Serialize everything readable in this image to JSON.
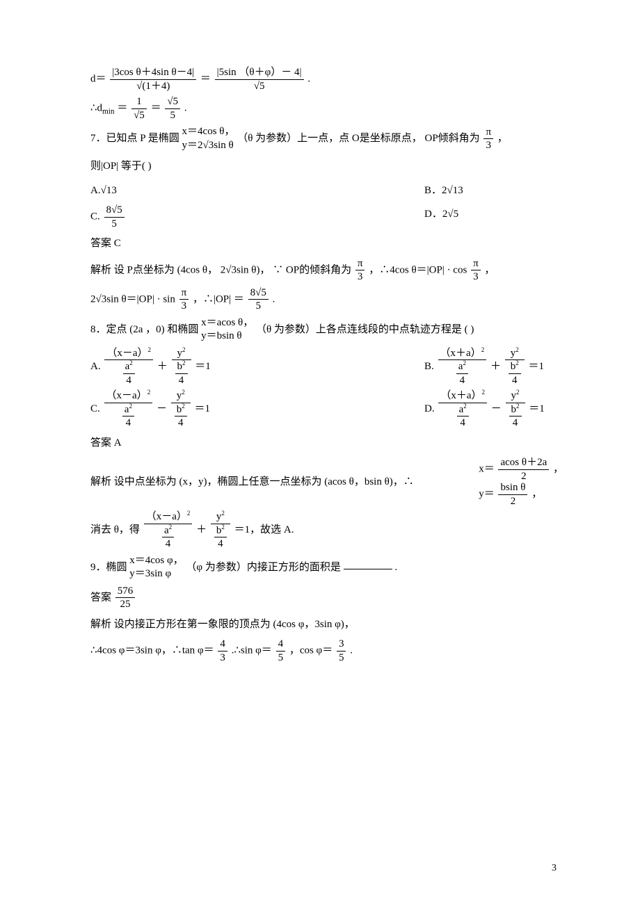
{
  "p1_a": "d＝",
  "p1_num1": "|3cos θ＋4sin θ－4|",
  "p1_den1": "√(1＋4)",
  "p1_eq": "＝",
  "p1_num2": "|5sin （θ＋φ）－ 4|",
  "p1_den2": "√5",
  "p1_end": ".",
  "p2_a": "∴d",
  "p2_sub": "min",
  "p2_eq": "＝",
  "p2_num1": "1",
  "p2_den1": "√5",
  "p2_eq2": "＝",
  "p2_num2": "√5",
  "p2_den2": "5",
  "p2_end": ".",
  "q7_1a": "7．已知点  P 是椭圆 ",
  "q7_br1": "x＝4cos θ，",
  "q7_br2": "y＝2√3sin θ",
  "q7_1b": "（θ 为参数）上一点，点   O是坐标原点，   OP倾斜角为 ",
  "q7_frac_n": "π",
  "q7_frac_d": "3",
  "q7_1c": "，",
  "q7_2": "则|OP| 等于(        )",
  "q7_A": "A.√13",
  "q7_B": "B．2√13",
  "q7_C_pre": "C.",
  "q7_C_num": "8√5",
  "q7_C_den": "5",
  "q7_D": "D．2√5",
  "q7_ans": "答案    C",
  "q7_e1a": "解析    设 P点坐标为 (4cos θ， 2√3sin θ)， ∵ OP的倾斜角为 ",
  "q7_e1_n": "π",
  "q7_e1_d": "3",
  "q7_e1b": "，∴4cos θ＝|OP| · cos",
  "q7_e1_n2": "π",
  "q7_e1_d2": "3",
  "q7_e1c": "，",
  "q7_e2a": "2√3sin θ＝|OP| · sin ",
  "q7_e2_n": "π",
  "q7_e2_d": "3",
  "q7_e2b": "，∴|OP| ＝",
  "q7_e2_n2": "8√5",
  "q7_e2_d2": "5",
  "q7_e2c": ".",
  "q8_1a": "8．定点 (2a ，0) 和椭圆 ",
  "q8_br1": "x＝acos θ，",
  "q8_br2": "y＝bsin θ",
  "q8_1b": " （θ 为参数）上各点连线段的中点轨迹方程是    (        )",
  "q8_A_pre": "A.",
  "q8_A_n1": "（x－a）",
  "q8_A_d1top": "a",
  "q8_A_d1bot": "4",
  "q8_A_plus": "＋",
  "q8_A_n2": "y",
  "q8_A_d2top": "b",
  "q8_A_d2bot": "4",
  "q8_A_eq": "＝1",
  "q8_B_pre": "B.",
  "q8_B_n1": "（x＋a）",
  "q8_C_pre": "C.",
  "q8_C_minus": "－",
  "q8_D_pre": "D.",
  "q8_ans": "答案    A",
  "q8_e1a": "解析    设中点坐标为  (x，y)，椭圆上任意一点坐标为    (acos θ，bsin θ)，∴",
  "q8_e_br1a": "x＝",
  "q8_e_br1_n": "acos θ＋2a",
  "q8_e_br1_d": "2",
  "q8_e_br1b": "，",
  "q8_e_br2a": "y＝",
  "q8_e_br2_n": "bsin θ",
  "q8_e_br2_d": "2",
  "q8_e_br2b": "，",
  "q8_e2a": "消去 θ，得 ",
  "q8_e2b": "＝1，故选  A.",
  "q9_1a": "9．椭圆 ",
  "q9_br1": "x＝4cos φ，",
  "q9_br2": "y＝3sin φ",
  "q9_1b": " （φ 为参数）内接正方形的面积是    ",
  "q9_1c": ".",
  "q9_ans_a": "答案   ",
  "q9_ans_n": "576",
  "q9_ans_d": "25",
  "q9_e1": "解析    设内接正方形在第一象限的顶点为      (4cos φ，3sin φ)，",
  "q9_e2a": "∴4cos φ＝3sin φ，∴tan φ＝",
  "q9_e2_n1": "4",
  "q9_e2_d1": "3",
  "q9_e2b": ".∴sin φ＝",
  "q9_e2_n2": "4",
  "q9_e2_d2": "5",
  "q9_e2c": "，cos φ＝",
  "q9_e2_n3": "3",
  "q9_e2_d3": "5",
  "q9_e2d": ".",
  "pagenum": "3"
}
